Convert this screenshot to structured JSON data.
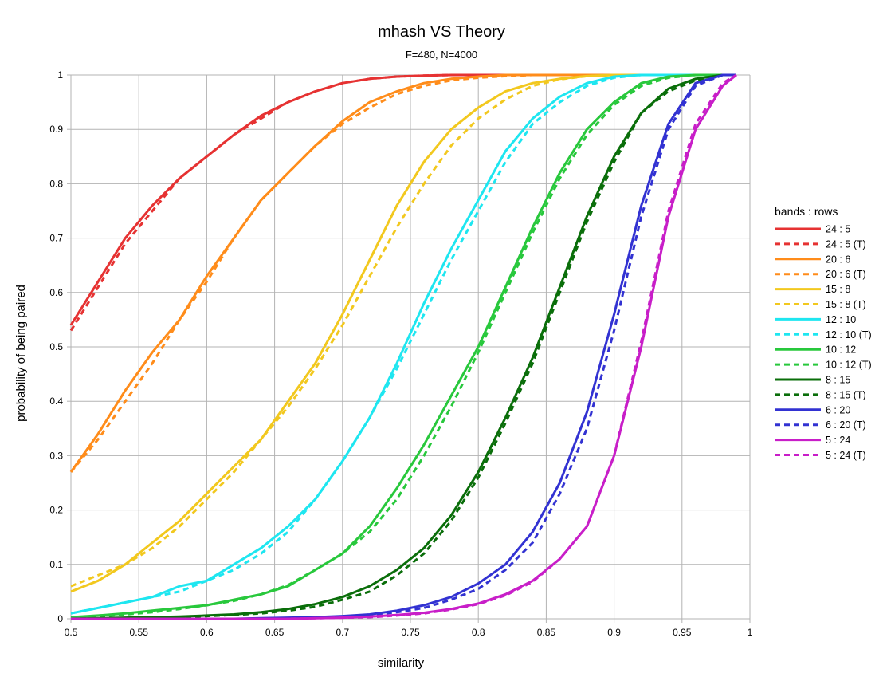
{
  "chart_data": {
    "type": "line",
    "title": "mhash VS Theory",
    "subtitle": "F=480, N=4000",
    "xlabel": "similarity",
    "ylabel": "probability of being paired",
    "xlim": [
      0.5,
      1
    ],
    "ylim": [
      0,
      1
    ],
    "x_ticks": [
      "0.5",
      "0.55",
      "0.6",
      "0.65",
      "0.7",
      "0.75",
      "0.8",
      "0.85",
      "0.9",
      "0.95",
      "1"
    ],
    "y_ticks": [
      "0",
      "0.1",
      "0.2",
      "0.3",
      "0.4",
      "0.5",
      "0.6",
      "0.7",
      "0.8",
      "0.9",
      "1"
    ],
    "grid": true,
    "legend": {
      "title": "bands : rows",
      "position": "right"
    },
    "x": [
      0.5,
      0.52,
      0.54,
      0.56,
      0.58,
      0.6,
      0.62,
      0.64,
      0.66,
      0.68,
      0.7,
      0.72,
      0.74,
      0.76,
      0.78,
      0.8,
      0.82,
      0.84,
      0.86,
      0.88,
      0.9,
      0.92,
      0.94,
      0.96,
      0.98,
      0.99
    ],
    "series": [
      {
        "name": "24 : 5",
        "color": "#e63232",
        "dashed": false,
        "values": [
          0.54,
          0.62,
          0.7,
          0.76,
          0.81,
          0.85,
          0.89,
          0.925,
          0.95,
          0.97,
          0.985,
          0.993,
          0.997,
          0.999,
          1,
          1,
          1,
          1,
          1,
          1,
          1,
          1,
          1,
          1,
          1,
          1
        ]
      },
      {
        "name": "24 : 5 (T)",
        "color": "#e63232",
        "dashed": true,
        "values": [
          0.53,
          0.61,
          0.69,
          0.75,
          0.81,
          0.85,
          0.89,
          0.92,
          0.95,
          0.97,
          0.985,
          0.993,
          0.997,
          0.999,
          1,
          1,
          1,
          1,
          1,
          1,
          1,
          1,
          1,
          1,
          1,
          1
        ]
      },
      {
        "name": "20 : 6",
        "color": "#ff8c1a",
        "dashed": false,
        "values": [
          0.27,
          0.34,
          0.42,
          0.49,
          0.55,
          0.63,
          0.7,
          0.77,
          0.82,
          0.87,
          0.915,
          0.95,
          0.97,
          0.985,
          0.993,
          0.997,
          1,
          1,
          1,
          1,
          1,
          1,
          1,
          1,
          1,
          1
        ]
      },
      {
        "name": "20 : 6 (T)",
        "color": "#ff8c1a",
        "dashed": true,
        "values": [
          0.27,
          0.33,
          0.4,
          0.47,
          0.55,
          0.62,
          0.7,
          0.77,
          0.82,
          0.87,
          0.91,
          0.94,
          0.965,
          0.98,
          0.99,
          0.995,
          0.998,
          1,
          1,
          1,
          1,
          1,
          1,
          1,
          1,
          1
        ]
      },
      {
        "name": "15 : 8",
        "color": "#f2c81e",
        "dashed": false,
        "values": [
          0.05,
          0.07,
          0.1,
          0.14,
          0.18,
          0.23,
          0.28,
          0.33,
          0.4,
          0.47,
          0.56,
          0.66,
          0.76,
          0.84,
          0.9,
          0.94,
          0.97,
          0.985,
          0.993,
          0.998,
          1,
          1,
          1,
          1,
          1,
          1
        ]
      },
      {
        "name": "15 : 8 (T)",
        "color": "#f2c81e",
        "dashed": true,
        "values": [
          0.06,
          0.08,
          0.1,
          0.13,
          0.17,
          0.22,
          0.27,
          0.33,
          0.39,
          0.46,
          0.54,
          0.63,
          0.72,
          0.8,
          0.87,
          0.92,
          0.955,
          0.98,
          0.992,
          0.998,
          1,
          1,
          1,
          1,
          1,
          1
        ]
      },
      {
        "name": "12 : 10",
        "color": "#1ee6f0",
        "dashed": false,
        "values": [
          0.01,
          0.02,
          0.03,
          0.04,
          0.06,
          0.07,
          0.1,
          0.13,
          0.17,
          0.22,
          0.29,
          0.37,
          0.47,
          0.58,
          0.68,
          0.77,
          0.86,
          0.92,
          0.96,
          0.985,
          0.997,
          1,
          1,
          1,
          1,
          1
        ]
      },
      {
        "name": "12 : 10 (T)",
        "color": "#1ee6f0",
        "dashed": true,
        "values": [
          0.01,
          0.02,
          0.03,
          0.04,
          0.05,
          0.07,
          0.09,
          0.12,
          0.16,
          0.22,
          0.29,
          0.37,
          0.46,
          0.56,
          0.66,
          0.75,
          0.84,
          0.91,
          0.95,
          0.98,
          0.995,
          1,
          1,
          1,
          1,
          1
        ]
      },
      {
        "name": "10 : 12",
        "color": "#28c83c",
        "dashed": false,
        "values": [
          0.003,
          0.006,
          0.01,
          0.015,
          0.02,
          0.025,
          0.035,
          0.045,
          0.06,
          0.09,
          0.12,
          0.17,
          0.24,
          0.32,
          0.41,
          0.5,
          0.61,
          0.72,
          0.82,
          0.9,
          0.95,
          0.985,
          0.997,
          1,
          1,
          1
        ]
      },
      {
        "name": "10 : 12 (T)",
        "color": "#28c83c",
        "dashed": true,
        "values": [
          0.002,
          0.004,
          0.008,
          0.012,
          0.018,
          0.025,
          0.033,
          0.045,
          0.062,
          0.09,
          0.12,
          0.16,
          0.22,
          0.3,
          0.39,
          0.49,
          0.6,
          0.71,
          0.81,
          0.89,
          0.945,
          0.98,
          0.995,
          1,
          1,
          1
        ]
      },
      {
        "name": "8 : 15",
        "color": "#0a6e0a",
        "dashed": false,
        "values": [
          0,
          0.001,
          0.002,
          0.003,
          0.004,
          0.006,
          0.008,
          0.012,
          0.018,
          0.027,
          0.04,
          0.06,
          0.09,
          0.13,
          0.19,
          0.27,
          0.37,
          0.48,
          0.61,
          0.74,
          0.85,
          0.93,
          0.975,
          0.993,
          1,
          1
        ]
      },
      {
        "name": "8 : 15 (T)",
        "color": "#0a6e0a",
        "dashed": true,
        "values": [
          0,
          0.001,
          0.001,
          0.002,
          0.003,
          0.005,
          0.007,
          0.01,
          0.015,
          0.022,
          0.035,
          0.05,
          0.08,
          0.12,
          0.18,
          0.26,
          0.36,
          0.47,
          0.6,
          0.73,
          0.84,
          0.93,
          0.97,
          0.99,
          1,
          1
        ]
      },
      {
        "name": "6 : 20",
        "color": "#3232d2",
        "dashed": false,
        "values": [
          0,
          0,
          0,
          0,
          0,
          0,
          0,
          0.001,
          0.002,
          0.003,
          0.005,
          0.008,
          0.015,
          0.025,
          0.04,
          0.065,
          0.1,
          0.16,
          0.25,
          0.38,
          0.56,
          0.76,
          0.91,
          0.985,
          1,
          1
        ]
      },
      {
        "name": "6 : 20 (T)",
        "color": "#3232d2",
        "dashed": true,
        "values": [
          0,
          0,
          0,
          0,
          0,
          0,
          0,
          0,
          0.001,
          0.002,
          0.004,
          0.007,
          0.012,
          0.02,
          0.035,
          0.055,
          0.09,
          0.14,
          0.23,
          0.35,
          0.53,
          0.74,
          0.9,
          0.98,
          1,
          1
        ]
      },
      {
        "name": "5 : 24",
        "color": "#c81ec8",
        "dashed": false,
        "values": [
          0,
          0,
          0,
          0,
          0,
          0,
          0,
          0,
          0,
          0.001,
          0.002,
          0.004,
          0.007,
          0.011,
          0.018,
          0.028,
          0.045,
          0.07,
          0.11,
          0.17,
          0.3,
          0.5,
          0.74,
          0.9,
          0.98,
          1
        ]
      },
      {
        "name": "5 : 24 (T)",
        "color": "#c81ec8",
        "dashed": true,
        "values": [
          0,
          0,
          0,
          0,
          0,
          0,
          0,
          0,
          0,
          0.001,
          0.002,
          0.003,
          0.006,
          0.01,
          0.017,
          0.027,
          0.043,
          0.068,
          0.11,
          0.17,
          0.3,
          0.51,
          0.75,
          0.91,
          0.985,
          1
        ]
      }
    ]
  }
}
